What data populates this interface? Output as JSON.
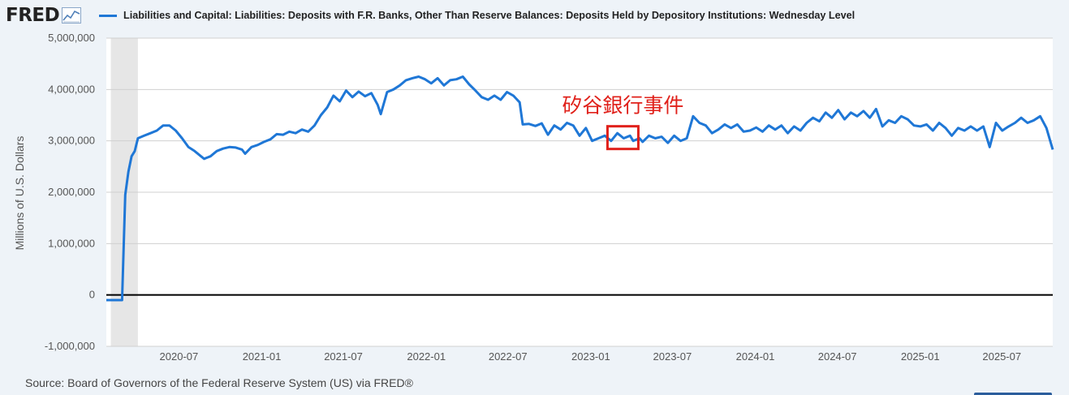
{
  "header": {
    "logo_text": "FRED",
    "logo_icon": "line-chart-icon",
    "legend_label": "Liabilities and Capital: Liabilities: Deposits with F.R. Banks, Other Than Reserve Balances: Deposits Held by Depository Institutions: Wednesday Level"
  },
  "footer": {
    "source": "Source: Board of Governors of the Federal Reserve System (US) via FRED®"
  },
  "colors": {
    "line": "#1f77d6",
    "annotation": "#e0201a",
    "plot_bg": "#ffffff",
    "page_bg": "#eef3f8",
    "grid": "#d0d0d0",
    "zero_line": "#000000",
    "shade": "#e6e6e6"
  },
  "chart_data": {
    "type": "line",
    "title": "",
    "xlabel": "",
    "ylabel": "Millions of U.S. Dollars",
    "ylim": [
      -1000000,
      5000000
    ],
    "xlim": [
      "2020-01-22",
      "2025-10-22"
    ],
    "grid": true,
    "legend": "top",
    "yticks": [
      -1000000,
      0,
      1000000,
      2000000,
      3000000,
      4000000,
      5000000
    ],
    "ytick_labels": [
      "-1,000,000",
      "0",
      "1,000,000",
      "2,000,000",
      "3,000,000",
      "4,000,000",
      "5,000,000"
    ],
    "xticks": [
      "2020-07-01",
      "2021-01-01",
      "2021-07-01",
      "2022-01-01",
      "2022-07-01",
      "2023-01-01",
      "2023-07-01",
      "2024-01-01",
      "2024-07-01",
      "2025-01-01",
      "2025-07-01"
    ],
    "xtick_labels": [
      "2020-07",
      "2021-01",
      "2021-07",
      "2022-01",
      "2022-07",
      "2023-01",
      "2023-07",
      "2024-01",
      "2024-07",
      "2025-01",
      "2025-07"
    ],
    "shaded_ranges": [
      [
        "2020-02-01",
        "2020-04-01"
      ]
    ],
    "annotations": [
      {
        "text": "矽谷銀行事件",
        "x": "2023-03-15",
        "y": 3000000
      }
    ],
    "series": [
      {
        "name": "Liabilities and Capital: Liabilities: Deposits with F.R. Banks, Other Than Reserve Balances: Deposits Held by Depository Institutions: Wednesday Level",
        "points": [
          [
            "2020-01-22",
            -100000
          ],
          [
            "2020-02-26",
            -100000
          ],
          [
            "2020-03-04",
            1950000
          ],
          [
            "2020-03-11",
            2400000
          ],
          [
            "2020-03-18",
            2700000
          ],
          [
            "2020-03-25",
            2800000
          ],
          [
            "2020-04-01",
            3050000
          ],
          [
            "2020-04-15",
            3100000
          ],
          [
            "2020-04-29",
            3150000
          ],
          [
            "2020-05-13",
            3200000
          ],
          [
            "2020-05-27",
            3300000
          ],
          [
            "2020-06-10",
            3300000
          ],
          [
            "2020-06-24",
            3200000
          ],
          [
            "2020-07-08",
            3050000
          ],
          [
            "2020-07-22",
            2880000
          ],
          [
            "2020-08-05",
            2800000
          ],
          [
            "2020-08-19",
            2700000
          ],
          [
            "2020-08-26",
            2650000
          ],
          [
            "2020-09-09",
            2700000
          ],
          [
            "2020-09-23",
            2800000
          ],
          [
            "2020-10-07",
            2850000
          ],
          [
            "2020-10-21",
            2880000
          ],
          [
            "2020-11-04",
            2870000
          ],
          [
            "2020-11-18",
            2830000
          ],
          [
            "2020-11-25",
            2750000
          ],
          [
            "2020-12-09",
            2880000
          ],
          [
            "2020-12-23",
            2920000
          ],
          [
            "2021-01-06",
            2980000
          ],
          [
            "2021-01-20",
            3030000
          ],
          [
            "2021-02-03",
            3130000
          ],
          [
            "2021-02-17",
            3120000
          ],
          [
            "2021-03-03",
            3180000
          ],
          [
            "2021-03-17",
            3150000
          ],
          [
            "2021-03-31",
            3220000
          ],
          [
            "2021-04-14",
            3180000
          ],
          [
            "2021-04-28",
            3300000
          ],
          [
            "2021-05-12",
            3500000
          ],
          [
            "2021-05-26",
            3650000
          ],
          [
            "2021-06-09",
            3880000
          ],
          [
            "2021-06-23",
            3770000
          ],
          [
            "2021-07-07",
            3980000
          ],
          [
            "2021-07-21",
            3850000
          ],
          [
            "2021-08-04",
            3960000
          ],
          [
            "2021-08-18",
            3870000
          ],
          [
            "2021-09-01",
            3930000
          ],
          [
            "2021-09-15",
            3700000
          ],
          [
            "2021-09-22",
            3520000
          ],
          [
            "2021-10-06",
            3950000
          ],
          [
            "2021-10-20",
            4000000
          ],
          [
            "2021-11-03",
            4080000
          ],
          [
            "2021-11-17",
            4180000
          ],
          [
            "2021-12-01",
            4220000
          ],
          [
            "2021-12-15",
            4250000
          ],
          [
            "2021-12-29",
            4200000
          ],
          [
            "2022-01-12",
            4120000
          ],
          [
            "2022-01-26",
            4220000
          ],
          [
            "2022-02-09",
            4080000
          ],
          [
            "2022-02-23",
            4180000
          ],
          [
            "2022-03-09",
            4200000
          ],
          [
            "2022-03-23",
            4250000
          ],
          [
            "2022-04-06",
            4100000
          ],
          [
            "2022-04-20",
            3980000
          ],
          [
            "2022-05-04",
            3850000
          ],
          [
            "2022-05-18",
            3800000
          ],
          [
            "2022-06-01",
            3880000
          ],
          [
            "2022-06-15",
            3800000
          ],
          [
            "2022-06-29",
            3950000
          ],
          [
            "2022-07-13",
            3880000
          ],
          [
            "2022-07-27",
            3750000
          ],
          [
            "2022-08-03",
            3320000
          ],
          [
            "2022-08-17",
            3330000
          ],
          [
            "2022-08-31",
            3290000
          ],
          [
            "2022-09-14",
            3340000
          ],
          [
            "2022-09-28",
            3120000
          ],
          [
            "2022-10-12",
            3300000
          ],
          [
            "2022-10-26",
            3220000
          ],
          [
            "2022-11-09",
            3350000
          ],
          [
            "2022-11-23",
            3300000
          ],
          [
            "2022-12-07",
            3100000
          ],
          [
            "2022-12-21",
            3250000
          ],
          [
            "2023-01-04",
            3000000
          ],
          [
            "2023-01-18",
            3050000
          ],
          [
            "2023-02-01",
            3100000
          ],
          [
            "2023-02-15",
            3000000
          ],
          [
            "2023-03-01",
            3150000
          ],
          [
            "2023-03-15",
            3050000
          ],
          [
            "2023-03-29",
            3100000
          ],
          [
            "2023-04-05",
            3000000
          ],
          [
            "2023-04-19",
            3050000
          ],
          [
            "2023-04-26",
            2980000
          ],
          [
            "2023-05-10",
            3100000
          ],
          [
            "2023-05-24",
            3050000
          ],
          [
            "2023-06-07",
            3080000
          ],
          [
            "2023-06-21",
            2960000
          ],
          [
            "2023-07-05",
            3100000
          ],
          [
            "2023-07-19",
            3000000
          ],
          [
            "2023-08-02",
            3050000
          ],
          [
            "2023-08-16",
            3480000
          ],
          [
            "2023-08-30",
            3350000
          ],
          [
            "2023-09-13",
            3300000
          ],
          [
            "2023-09-27",
            3150000
          ],
          [
            "2023-10-11",
            3220000
          ],
          [
            "2023-10-25",
            3320000
          ],
          [
            "2023-11-08",
            3250000
          ],
          [
            "2023-11-22",
            3320000
          ],
          [
            "2023-12-06",
            3180000
          ],
          [
            "2023-12-20",
            3200000
          ],
          [
            "2024-01-03",
            3260000
          ],
          [
            "2024-01-17",
            3180000
          ],
          [
            "2024-01-31",
            3300000
          ],
          [
            "2024-02-14",
            3220000
          ],
          [
            "2024-02-28",
            3300000
          ],
          [
            "2024-03-13",
            3150000
          ],
          [
            "2024-03-27",
            3280000
          ],
          [
            "2024-04-10",
            3200000
          ],
          [
            "2024-04-24",
            3350000
          ],
          [
            "2024-05-08",
            3450000
          ],
          [
            "2024-05-22",
            3380000
          ],
          [
            "2024-06-05",
            3550000
          ],
          [
            "2024-06-19",
            3450000
          ],
          [
            "2024-07-03",
            3600000
          ],
          [
            "2024-07-17",
            3420000
          ],
          [
            "2024-07-31",
            3550000
          ],
          [
            "2024-08-14",
            3480000
          ],
          [
            "2024-08-28",
            3580000
          ],
          [
            "2024-09-11",
            3450000
          ],
          [
            "2024-09-25",
            3620000
          ],
          [
            "2024-10-09",
            3280000
          ],
          [
            "2024-10-23",
            3400000
          ],
          [
            "2024-11-06",
            3350000
          ],
          [
            "2024-11-20",
            3480000
          ],
          [
            "2024-12-04",
            3420000
          ],
          [
            "2024-12-18",
            3300000
          ],
          [
            "2025-01-01",
            3280000
          ],
          [
            "2025-01-15",
            3320000
          ],
          [
            "2025-01-29",
            3200000
          ],
          [
            "2025-02-12",
            3350000
          ],
          [
            "2025-02-26",
            3250000
          ],
          [
            "2025-03-12",
            3100000
          ],
          [
            "2025-03-26",
            3250000
          ],
          [
            "2025-04-09",
            3200000
          ],
          [
            "2025-04-23",
            3280000
          ],
          [
            "2025-05-07",
            3200000
          ],
          [
            "2025-05-21",
            3280000
          ],
          [
            "2025-06-04",
            2880000
          ],
          [
            "2025-06-18",
            3350000
          ],
          [
            "2025-07-02",
            3200000
          ],
          [
            "2025-07-16",
            3280000
          ],
          [
            "2025-07-30",
            3350000
          ],
          [
            "2025-08-13",
            3450000
          ],
          [
            "2025-08-27",
            3350000
          ],
          [
            "2025-09-10",
            3400000
          ],
          [
            "2025-09-24",
            3480000
          ],
          [
            "2025-10-08",
            3250000
          ],
          [
            "2025-10-22",
            2830000
          ]
        ]
      }
    ]
  }
}
